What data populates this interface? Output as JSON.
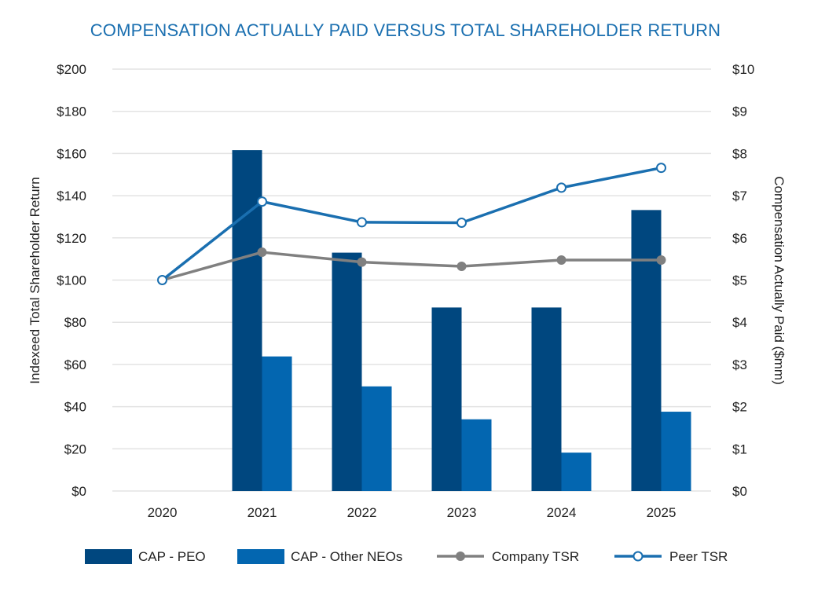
{
  "chart_data": {
    "type": "bar",
    "title": "COMPENSATION ACTUALLY PAID VERSUS TOTAL SHAREHOLDER RETURN",
    "categories": [
      "2020",
      "2021",
      "2022",
      "2023",
      "2024",
      "2025"
    ],
    "left_axis": {
      "label": "Indexeed Total Shareholder Return",
      "range": [
        0,
        200
      ],
      "ticks": [
        0,
        20,
        40,
        60,
        80,
        100,
        120,
        140,
        160,
        180,
        200
      ],
      "tick_labels": [
        "$0",
        "$20",
        "$40",
        "$60",
        "$80",
        "$100",
        "$120",
        "$140",
        "$160",
        "$180",
        "$200"
      ]
    },
    "right_axis": {
      "label": "Compensation Actually Paid ($mm)",
      "range": [
        0,
        10
      ],
      "ticks": [
        0,
        1,
        2,
        3,
        4,
        5,
        6,
        7,
        8,
        9,
        10
      ],
      "tick_labels": [
        "$0",
        "$1",
        "$2",
        "$3",
        "$4",
        "$5",
        "$6",
        "$7",
        "$8",
        "$9",
        "$10"
      ]
    },
    "series": [
      {
        "name": "CAP - PEO",
        "kind": "bar",
        "axis": "right",
        "color": "#00477f",
        "values": [
          null,
          8.08,
          5.65,
          4.35,
          4.35,
          6.66
        ]
      },
      {
        "name": "CAP - Other NEOs",
        "kind": "bar",
        "axis": "right",
        "color": "#0366b0",
        "values": [
          null,
          3.19,
          2.48,
          1.7,
          0.91,
          1.88
        ]
      },
      {
        "name": "Company TSR",
        "kind": "line",
        "axis": "left",
        "color": "#808080",
        "marker": "filled-circle",
        "values": [
          100,
          113.2,
          108.5,
          106.5,
          109.5,
          109.5
        ]
      },
      {
        "name": "Peer TSR",
        "kind": "line",
        "axis": "left",
        "color": "#1a6fb0",
        "marker": "hollow-circle",
        "values": [
          100,
          137.2,
          127.4,
          127.2,
          143.8,
          153.2
        ]
      }
    ],
    "grid": true,
    "legend": "bottom"
  }
}
